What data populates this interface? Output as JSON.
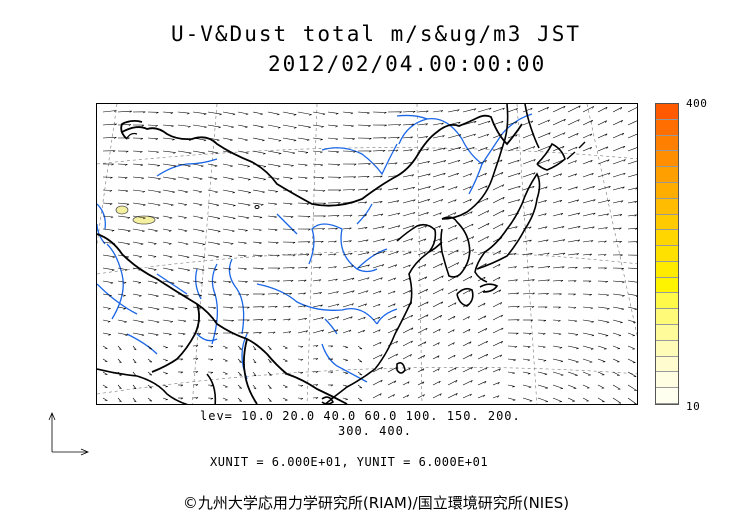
{
  "title": {
    "line1": "U-V&Dust total m/s&ug/m3 JST",
    "line2": "2012/02/04.00:00:00"
  },
  "levels": {
    "line1": "lev= 10.0 20.0 40.0 60.0 100. 150. 200.",
    "line2": "300. 400."
  },
  "units_text": "XUNIT = 6.000E+01, YUNIT = 6.000E+01",
  "copyright": "©九州大学応用力学研究所(RIAM)/国立環境研究所(NIES)",
  "colorbar": {
    "max_label": "400",
    "min_label": "10",
    "colors": [
      "#ff5a00",
      "#ff6e00",
      "#ff7f00",
      "#ff8f00",
      "#ff9f00",
      "#ffae00",
      "#ffbc00",
      "#ffca00",
      "#ffd600",
      "#ffe100",
      "#ffeb00",
      "#fff400",
      "#fff94a",
      "#fffa78",
      "#fffb9b",
      "#fffcb8",
      "#fffdcf",
      "#fffee2",
      "#fffff0"
    ]
  },
  "colors": {
    "coast": "#000000",
    "rivers": "#1a66e6",
    "dust": "#f5f0a0",
    "wind": "#000000"
  }
}
